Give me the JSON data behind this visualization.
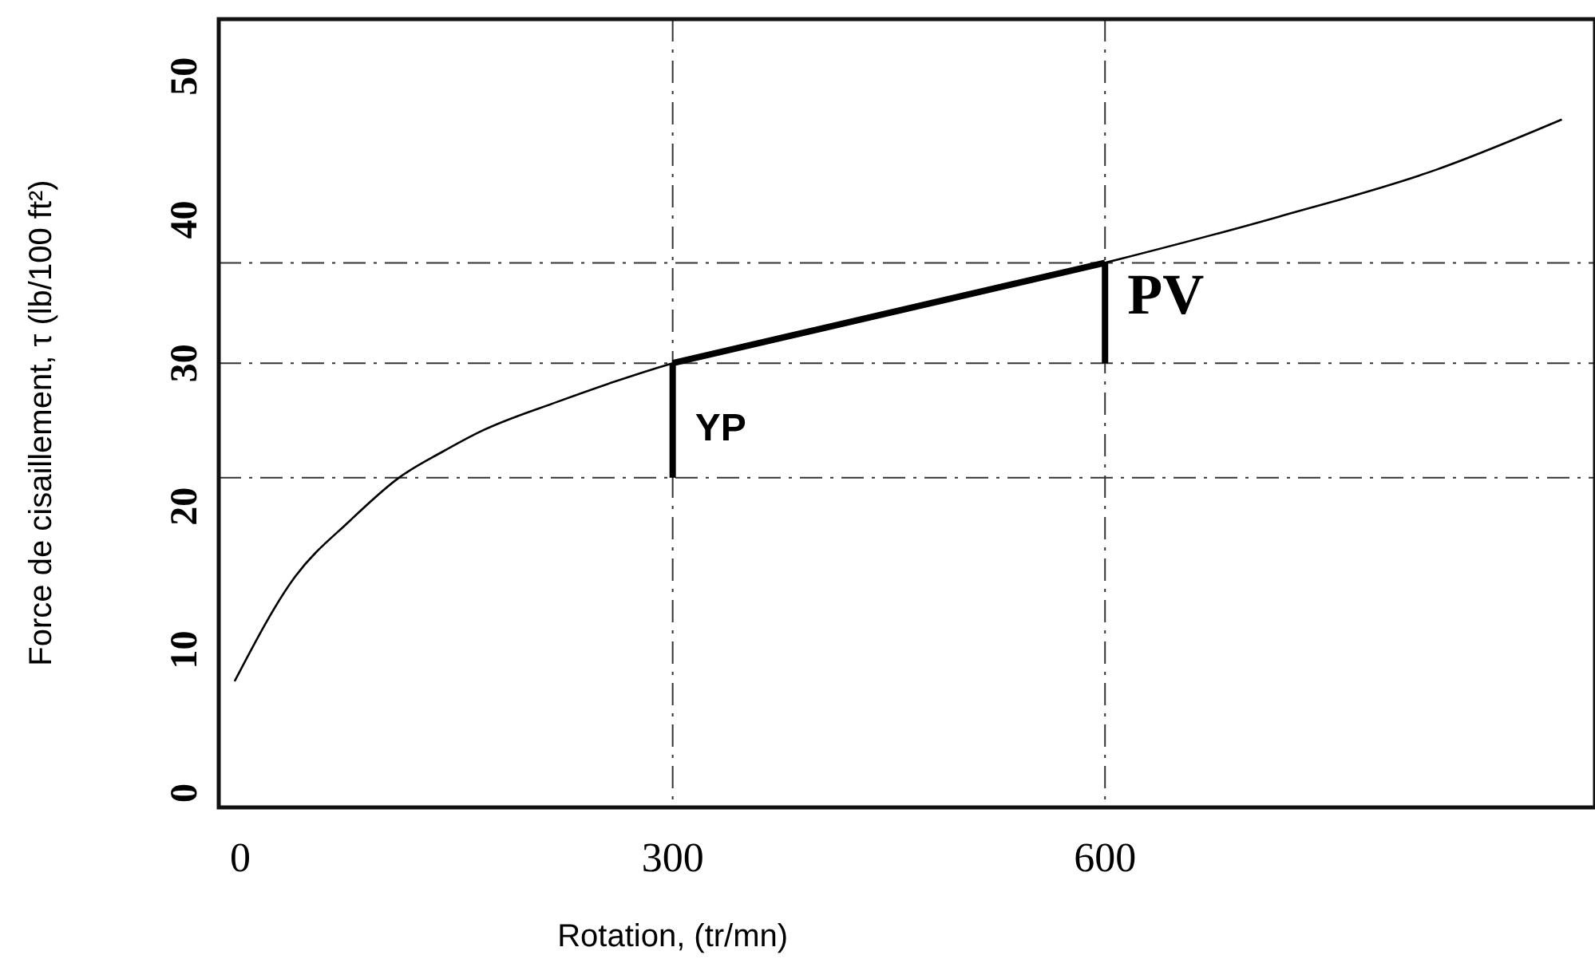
{
  "chart_data": {
    "type": "line",
    "xlabel": "Rotation, (tr/mn)",
    "ylabel": "Force de cisaillement, τ (lb/100 ft²)",
    "xlim": [
      -15,
      940
    ],
    "xticks": [
      0,
      300,
      600
    ],
    "ylim": [
      -1,
      54
    ],
    "yticks": [
      0,
      10,
      20,
      30,
      40,
      50
    ],
    "grid": false,
    "marker": "none",
    "series": [
      {
        "color": "#000000",
        "x": [
          -4,
          38,
          76,
          110,
          140,
          166,
          220,
          300,
          420,
          600,
          720,
          830,
          917
        ],
        "values": [
          7.8,
          15.1,
          19,
          22,
          23.8,
          25.2,
          27.3,
          30,
          32.8,
          37,
          40.2,
          43.5,
          47
        ]
      },
      {
        "color": "#000000",
        "x": [
          300,
          600
        ],
        "values": [
          30,
          37
        ]
      },
      {
        "color": "#000000",
        "x": [
          300,
          300
        ],
        "values": [
          22,
          30
        ]
      },
      {
        "color": "#000000",
        "x": [
          600,
          600
        ],
        "values": [
          30,
          37
        ]
      }
    ],
    "ref_lines": [
      {
        "axis": "x",
        "value": 300,
        "color": "#333333",
        "line_style": "dashed"
      },
      {
        "axis": "x",
        "value": 600,
        "color": "#333333",
        "line_style": "dashed"
      },
      {
        "axis": "y",
        "value": 37,
        "color": "#333333",
        "line_style": "dashed"
      },
      {
        "axis": "y",
        "value": 30,
        "color": "#333333",
        "line_style": "dashed"
      },
      {
        "axis": "y",
        "value": 22,
        "color": "#333333",
        "line_style": "dashed"
      }
    ],
    "annotations": [
      "YP",
      "PV"
    ]
  }
}
